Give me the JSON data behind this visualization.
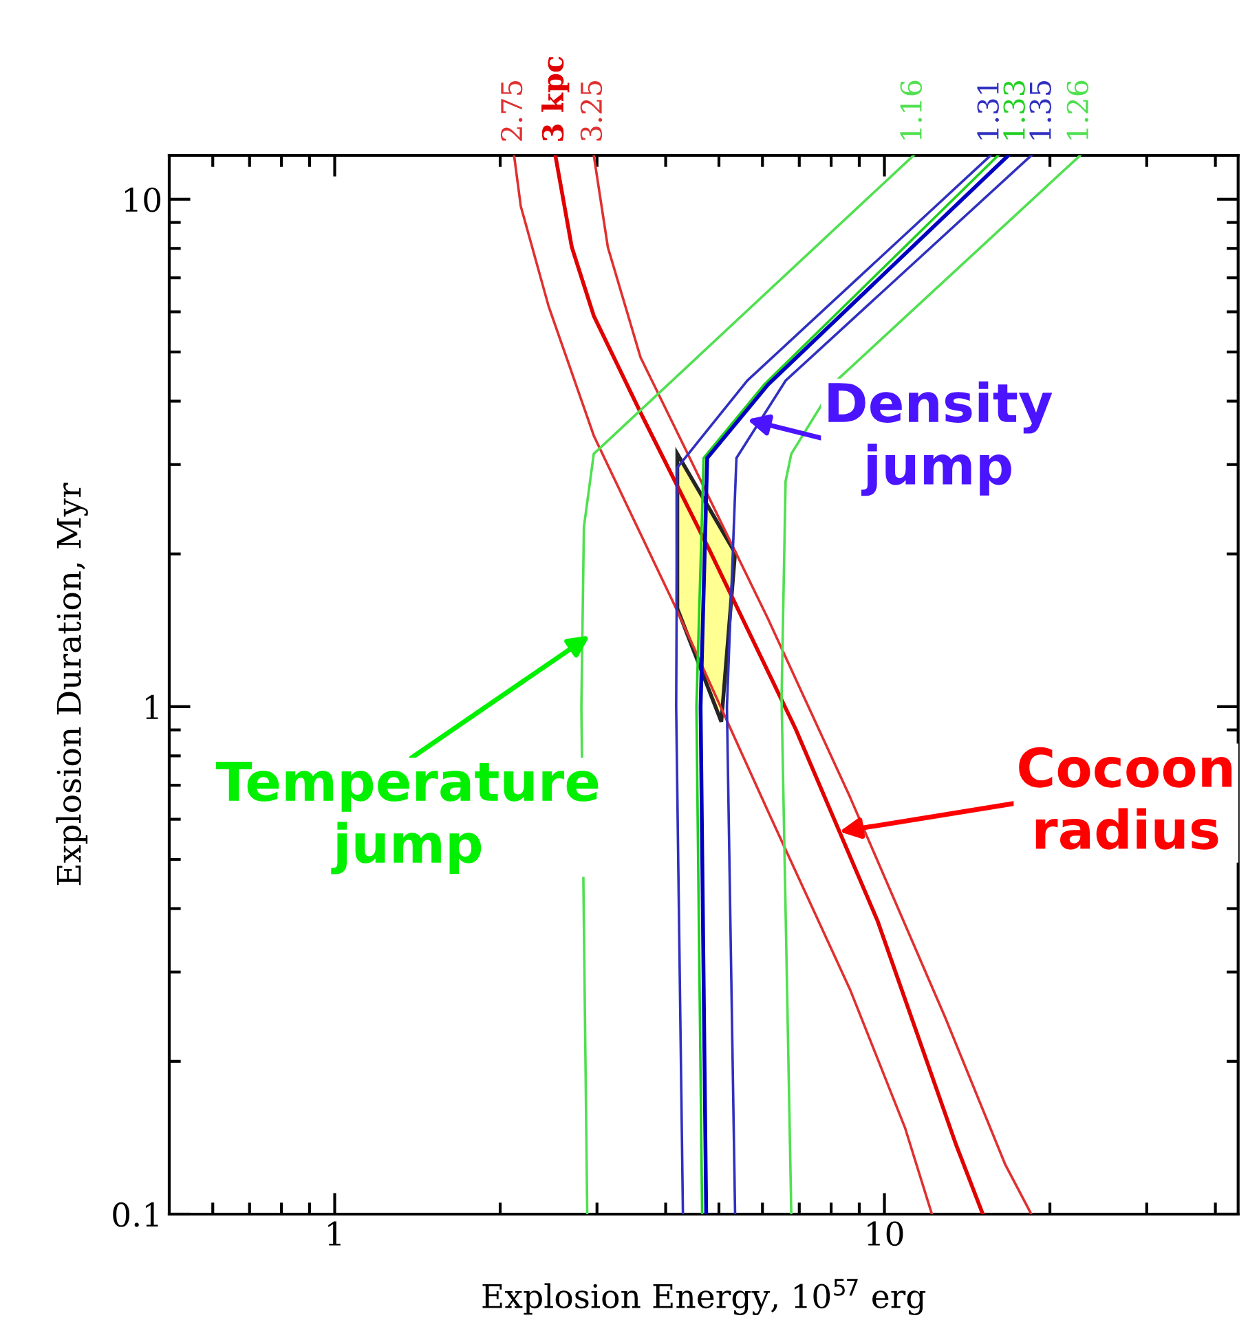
{
  "chart_data": {
    "type": "line",
    "xlabel": "Explosion Energy, 10$^{57}$ erg",
    "ylabel": "Explosion Duration, Myr",
    "log": "xy",
    "xlim": [
      0.5,
      44
    ],
    "ylim": [
      0.1,
      12.2
    ],
    "xticks": [
      {
        "value": 0.6,
        "label": null
      },
      {
        "value": 0.7,
        "label": null
      },
      {
        "value": 0.8,
        "label": null
      },
      {
        "value": 0.9,
        "label": null
      },
      1,
      {
        "value": 2,
        "label": null
      },
      {
        "value": 3,
        "label": null
      },
      {
        "value": 4,
        "label": null
      },
      {
        "value": 5,
        "label": null
      },
      {
        "value": 6,
        "label": null
      },
      {
        "value": 7,
        "label": null
      },
      {
        "value": 8,
        "label": null
      },
      {
        "value": 9,
        "label": null
      },
      10,
      {
        "value": 20,
        "label": null
      },
      {
        "value": 30,
        "label": null
      },
      {
        "value": 40,
        "label": null
      }
    ],
    "yticks": [
      0.1,
      {
        "value": 0.2,
        "label": null
      },
      {
        "value": 0.3,
        "label": null
      },
      {
        "value": 0.4,
        "label": null
      },
      {
        "value": 0.5,
        "label": null
      },
      {
        "value": 0.6,
        "label": null
      },
      {
        "value": 0.7,
        "label": null
      },
      {
        "value": 0.8,
        "label": null
      },
      {
        "value": 0.9,
        "label": null
      },
      1,
      {
        "value": 2,
        "label": null
      },
      {
        "value": 3,
        "label": null
      },
      {
        "value": 4,
        "label": null
      },
      {
        "value": 5,
        "label": null
      },
      {
        "value": 6,
        "label": null
      },
      {
        "value": 7,
        "label": null
      },
      {
        "value": 8,
        "label": null
      },
      {
        "value": 9,
        "label": null
      },
      10
    ],
    "grid": false,
    "legend": false,
    "marker": "none",
    "line_style": "solid",
    "series": [
      {
        "name": "2.75",
        "color": "#e03030",
        "x": [
          2.12,
          2.18,
          2.45,
          2.96,
          4.18,
          6.14,
          8.66,
          10.9,
          12.2
        ],
        "values": [
          12.2,
          9.69,
          6.15,
          3.42,
          1.56,
          0.622,
          0.277,
          0.148,
          0.1
        ]
      },
      {
        "name": "3 kpc",
        "color": "#e00000",
        "x": [
          2.52,
          2.7,
          2.96,
          3.6,
          4.8,
          6.89,
          9.72,
          13.5,
          15.1
        ],
        "values": [
          12.2,
          8.04,
          5.89,
          3.8,
          2.04,
          0.905,
          0.378,
          0.137,
          0.1
        ]
      },
      {
        "name": "3.25",
        "color": "#e03030",
        "x": [
          2.96,
          3.14,
          3.6,
          4.35,
          6.14,
          8.66,
          12.9,
          16.6,
          18.5
        ],
        "values": [
          12.2,
          8.04,
          4.88,
          3.21,
          1.49,
          0.663,
          0.244,
          0.125,
          0.1
        ]
      },
      {
        "name": "1.16",
        "color": "#50e050",
        "x": [
          2.88,
          2.81,
          2.84,
          2.96,
          11.3
        ],
        "values": [
          0.1,
          1,
          2.26,
          3.15,
          12.2
        ]
      },
      {
        "name": "1.31",
        "color": "#3030c0",
        "x": [
          4.3,
          4.18,
          4.2,
          4.4,
          5.63,
          15.6
        ],
        "values": [
          0.1,
          1,
          2.96,
          3.15,
          4.39,
          12.2
        ]
      },
      {
        "name": "1.33",
        "color": "#20d020",
        "x": [
          4.66,
          4.55,
          4.69,
          6.04,
          16.1
        ],
        "values": [
          0.1,
          1,
          3.09,
          4.31,
          12.2
        ]
      },
      {
        "color": "#0000c0",
        "x": [
          4.74,
          4.63,
          4.76,
          6.14,
          16.8
        ],
        "values": [
          0.1,
          1,
          3.09,
          4.31,
          12.2
        ]
      },
      {
        "name": "1.35",
        "color": "#3030c0",
        "x": [
          5.35,
          5.17,
          5.38,
          6.61,
          18.5
        ],
        "values": [
          0.1,
          1,
          3.09,
          4.39,
          12.2
        ]
      },
      {
        "name": "1.26",
        "color": "#50e050",
        "x": [
          6.77,
          6.5,
          6.61,
          6.77,
          8.18,
          22.7
        ],
        "values": [
          0.1,
          1.04,
          2.78,
          3.15,
          4.39,
          12.2
        ]
      },
      {
        "type": "area",
        "color": "#ffff80",
        "x": [
          4.2,
          5.35,
          5.05,
          4.2
        ],
        "values": [
          3.15,
          2.01,
          0.934,
          1.56
        ]
      }
    ],
    "annotations": [
      {
        "text": "Density\njump",
        "x": 5.63,
        "y": 3.68
      },
      {
        "text": "Temperature\njump",
        "x": 2.91,
        "y": 1.38
      },
      {
        "text": "Cocoon\nradius",
        "x": 8.28,
        "y": 0.567
      }
    ]
  }
}
